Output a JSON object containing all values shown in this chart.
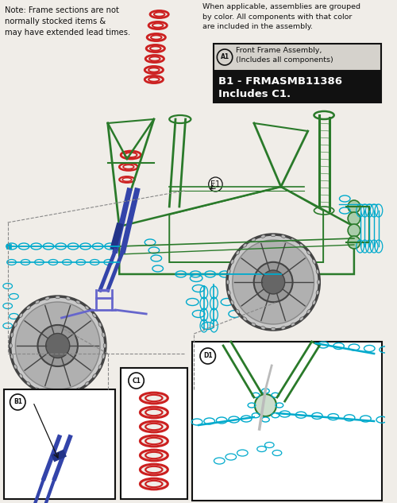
{
  "bg_color": "#f0ede8",
  "fig_width": 5.0,
  "fig_height": 6.33,
  "dpi": 100,
  "note_left": "Note: Frame sections are not\nnormally stocked items &\nmay have extended lead times.",
  "note_right": "When applicable, assemblies are grouped\nby color. All components with that color\nare included in the assembly.",
  "legend_a1": "Front Frame Assembly,\n(Includes all components)",
  "legend_b1": "B1 - FRMASMB11386\nIncludes C1.",
  "fc": "#2a7a2a",
  "cc": "#00aacc",
  "rc": "#cc2020",
  "bc": "#3344aa",
  "vc": "#6666cc",
  "dg": "#444444",
  "mg": "#888888",
  "lg": "#bbbbbb",
  "wh": "#ffffff",
  "bk": "#111111",
  "bg": "#f0ede8"
}
